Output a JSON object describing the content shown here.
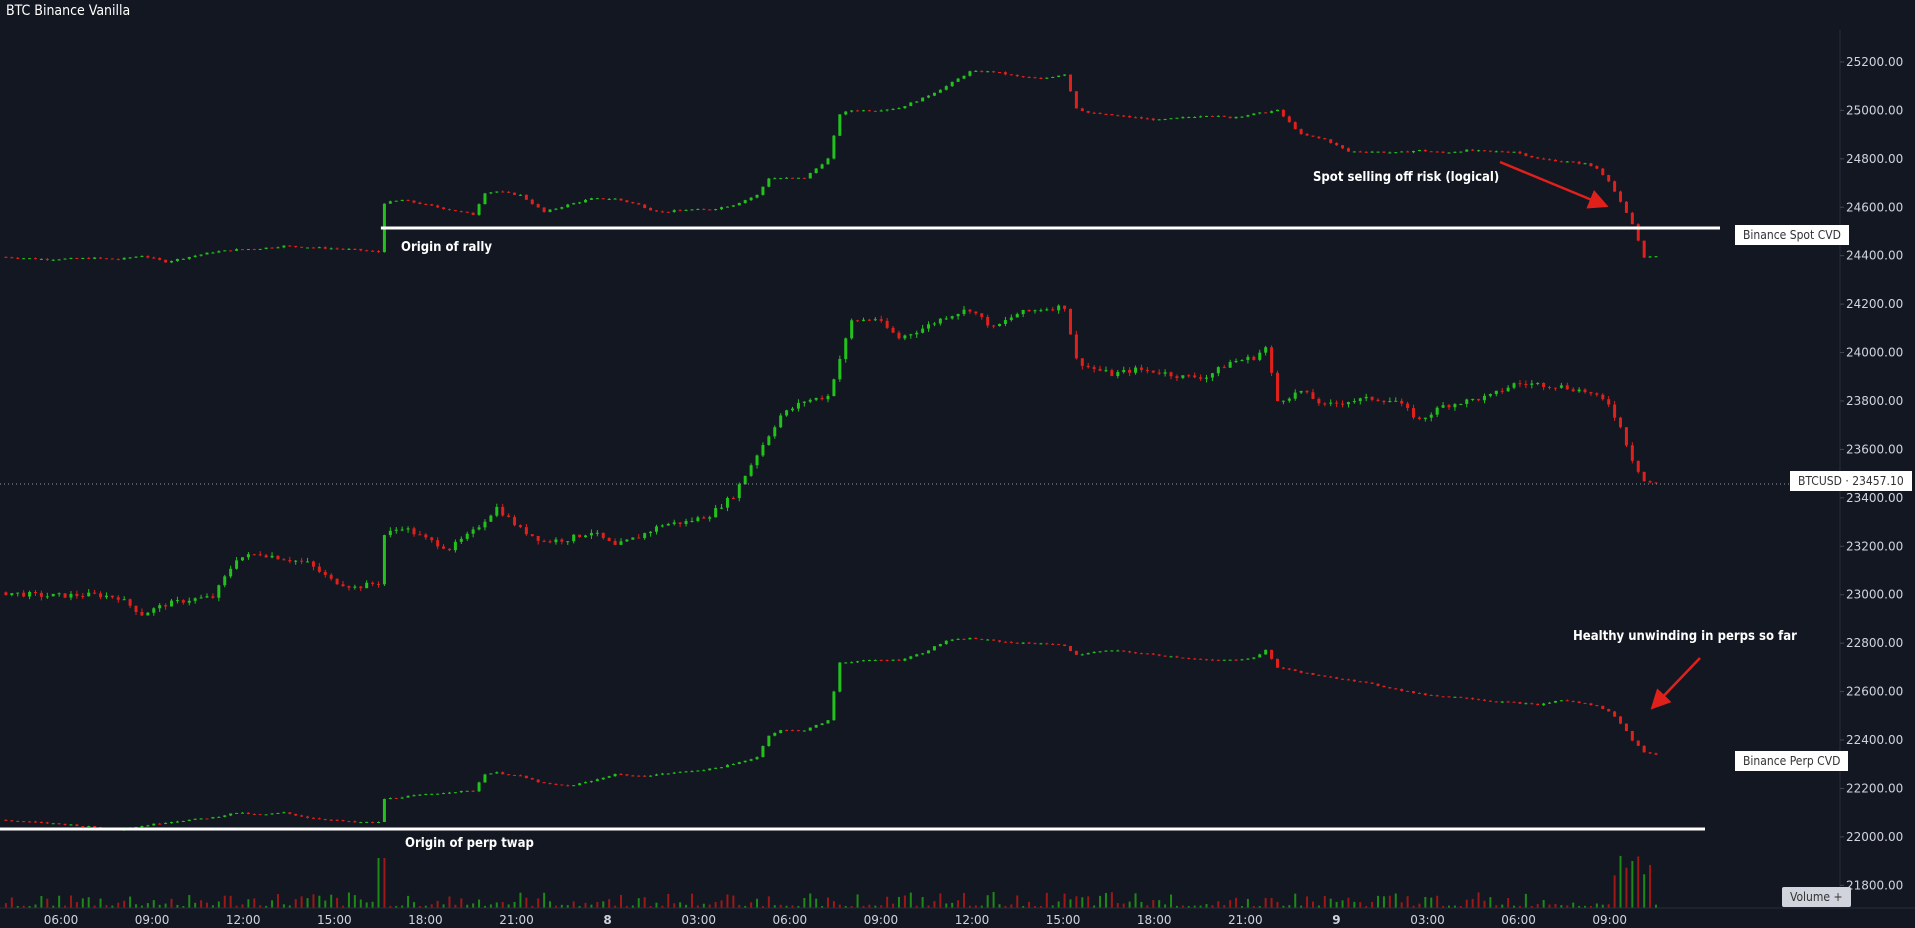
{
  "header": {
    "title": "BTC Binance Vanilla"
  },
  "tags": {
    "spot_cvd": "Binance Spot CVD",
    "perp_cvd": "Binance Perp CVD",
    "btcusd": "BTCUSD  ·  23457.10"
  },
  "volume_button": "Volume +",
  "annotations": {
    "origin_rally": "Origin of rally",
    "origin_perp": "Origin of perp twap",
    "spot_selling": "Spot selling off risk (logical)",
    "healthy_unwinding": "Healthy unwinding in perps so far"
  },
  "colors": {
    "up": "#22c11c",
    "down": "#e0201b",
    "background": "#131722",
    "line": "#ffffff",
    "arrow": "#e0201b"
  },
  "chart_data": {
    "type": "line",
    "title": "BTC Binance Vanilla",
    "price_axis_ticks": [
      25200,
      25000,
      24800,
      24600,
      24400,
      24200,
      24000,
      23800,
      23600,
      23400,
      23200,
      23000,
      22800,
      22600,
      22400,
      22200,
      22000,
      21800
    ],
    "price_axis_labels": [
      "25200.00",
      "25000.00",
      "24800.00",
      "24600.00",
      "24400.00",
      "24200.00",
      "24000.00",
      "23800.00",
      "23600.00",
      "23400.00",
      "23200.00",
      "23000.00",
      "22800.00",
      "22600.00",
      "22400.00",
      "22200.00",
      "22000.00",
      "21800.00"
    ],
    "ylim": [
      21760,
      25270
    ],
    "time_axis_labels": [
      "06:00",
      "09:00",
      "12:00",
      "15:00",
      "18:00",
      "21:00",
      "8",
      "03:00",
      "06:00",
      "09:00",
      "12:00",
      "15:00",
      "18:00",
      "21:00",
      "9",
      "03:00",
      "06:00",
      "09:00"
    ],
    "last_price": 23457.1,
    "series": [
      {
        "name": "Binance Spot CVD",
        "scale": "price_axis",
        "anchors": [
          [
            0,
            24395
          ],
          [
            2,
            24385
          ],
          [
            4,
            24390
          ],
          [
            5,
            24385
          ],
          [
            6,
            24400
          ],
          [
            7,
            24375
          ],
          [
            8,
            24395
          ],
          [
            9,
            24415
          ],
          [
            10,
            24425
          ],
          [
            11,
            24430
          ],
          [
            12,
            24440
          ],
          [
            13,
            24435
          ],
          [
            14,
            24430
          ],
          [
            15,
            24425
          ],
          [
            16,
            24415
          ],
          [
            16.05,
            24440
          ],
          [
            16.1,
            24615
          ],
          [
            17,
            24630
          ],
          [
            18,
            24610
          ],
          [
            19,
            24590
          ],
          [
            20,
            24570
          ],
          [
            20.5,
            24660
          ],
          [
            21,
            24665
          ],
          [
            22,
            24650
          ],
          [
            23,
            24580
          ],
          [
            24,
            24610
          ],
          [
            25,
            24635
          ],
          [
            26,
            24635
          ],
          [
            27,
            24610
          ],
          [
            27.5,
            24590
          ],
          [
            28,
            24580
          ],
          [
            29,
            24590
          ],
          [
            30,
            24590
          ],
          [
            31,
            24610
          ],
          [
            32,
            24650
          ],
          [
            32.5,
            24720
          ],
          [
            33,
            24720
          ],
          [
            34,
            24720
          ],
          [
            34.5,
            24760
          ],
          [
            35,
            24800
          ],
          [
            35.5,
            24985
          ],
          [
            36,
            25000
          ],
          [
            37,
            25000
          ],
          [
            38,
            25010
          ],
          [
            39,
            25050
          ],
          [
            40,
            25100
          ],
          [
            41,
            25160
          ],
          [
            42,
            25160
          ],
          [
            43,
            25140
          ],
          [
            44,
            25130
          ],
          [
            45,
            25150
          ],
          [
            45.5,
            25010
          ],
          [
            46,
            24990
          ],
          [
            47,
            24980
          ],
          [
            48,
            24970
          ],
          [
            49,
            24960
          ],
          [
            50,
            24970
          ],
          [
            51,
            24980
          ],
          [
            52,
            24970
          ],
          [
            53,
            24985
          ],
          [
            54,
            25000
          ],
          [
            55,
            24900
          ],
          [
            56,
            24880
          ],
          [
            57,
            24830
          ],
          [
            58,
            24830
          ],
          [
            59,
            24825
          ],
          [
            60,
            24835
          ],
          [
            61,
            24825
          ],
          [
            62,
            24835
          ],
          [
            63,
            24830
          ],
          [
            64,
            24830
          ],
          [
            65,
            24800
          ],
          [
            66,
            24790
          ],
          [
            67,
            24780
          ],
          [
            67.5,
            24760
          ],
          [
            68,
            24710
          ],
          [
            68.5,
            24620
          ],
          [
            69,
            24530
          ],
          [
            69.5,
            24395
          ],
          [
            70,
            24395
          ],
          [
            70.2,
            24410
          ]
        ]
      },
      {
        "name": "BTCUSD",
        "scale": "price_axis",
        "anchors": [
          [
            0,
            23010
          ],
          [
            2,
            22995
          ],
          [
            4,
            23000
          ],
          [
            5,
            22990
          ],
          [
            6,
            22920
          ],
          [
            7,
            22960
          ],
          [
            8,
            22980
          ],
          [
            9,
            22990
          ],
          [
            10,
            23150
          ],
          [
            11,
            23170
          ],
          [
            12,
            23150
          ],
          [
            13,
            23130
          ],
          [
            14,
            23060
          ],
          [
            15,
            23030
          ],
          [
            16,
            23050
          ],
          [
            16.1,
            23240
          ],
          [
            17,
            23280
          ],
          [
            18,
            23230
          ],
          [
            19,
            23190
          ],
          [
            20,
            23260
          ],
          [
            21,
            23360
          ],
          [
            22,
            23270
          ],
          [
            23,
            23220
          ],
          [
            24,
            23230
          ],
          [
            25,
            23260
          ],
          [
            26,
            23200
          ],
          [
            27,
            23240
          ],
          [
            28,
            23290
          ],
          [
            29,
            23300
          ],
          [
            30,
            23330
          ],
          [
            31,
            23410
          ],
          [
            32,
            23580
          ],
          [
            33,
            23740
          ],
          [
            34,
            23800
          ],
          [
            35,
            23820
          ],
          [
            36,
            24130
          ],
          [
            37,
            24140
          ],
          [
            38,
            24060
          ],
          [
            39,
            24100
          ],
          [
            40,
            24150
          ],
          [
            41,
            24180
          ],
          [
            42,
            24100
          ],
          [
            43,
            24160
          ],
          [
            44,
            24180
          ],
          [
            45,
            24190
          ],
          [
            45.5,
            23970
          ],
          [
            46,
            23940
          ],
          [
            47,
            23910
          ],
          [
            48,
            23930
          ],
          [
            49,
            23920
          ],
          [
            50,
            23900
          ],
          [
            51,
            23900
          ],
          [
            52,
            23960
          ],
          [
            53,
            23980
          ],
          [
            53.5,
            24020
          ],
          [
            54,
            23800
          ],
          [
            55,
            23840
          ],
          [
            56,
            23780
          ],
          [
            57,
            23800
          ],
          [
            58,
            23810
          ],
          [
            59,
            23800
          ],
          [
            60,
            23720
          ],
          [
            61,
            23780
          ],
          [
            62,
            23800
          ],
          [
            63,
            23820
          ],
          [
            64,
            23870
          ],
          [
            65,
            23870
          ],
          [
            66,
            23860
          ],
          [
            67,
            23840
          ],
          [
            68,
            23790
          ],
          [
            68.5,
            23690
          ],
          [
            69,
            23560
          ],
          [
            69.5,
            23470
          ],
          [
            70,
            23457.1
          ]
        ]
      },
      {
        "name": "Binance Perp CVD",
        "scale": "price_axis",
        "anchors": [
          [
            0,
            22070
          ],
          [
            3,
            22050
          ],
          [
            5,
            22030
          ],
          [
            7,
            22060
          ],
          [
            8,
            22070
          ],
          [
            9,
            22080
          ],
          [
            10,
            22100
          ],
          [
            11,
            22090
          ],
          [
            12,
            22100
          ],
          [
            13,
            22080
          ],
          [
            14,
            22070
          ],
          [
            15,
            22060
          ],
          [
            16,
            22060
          ],
          [
            16.1,
            22155
          ],
          [
            18,
            22175
          ],
          [
            19,
            22185
          ],
          [
            20,
            22190
          ],
          [
            20.5,
            22260
          ],
          [
            21,
            22265
          ],
          [
            22,
            22250
          ],
          [
            23,
            22220
          ],
          [
            24,
            22210
          ],
          [
            25,
            22230
          ],
          [
            26,
            22260
          ],
          [
            27,
            22250
          ],
          [
            28,
            22260
          ],
          [
            29,
            22270
          ],
          [
            30,
            22280
          ],
          [
            31,
            22300
          ],
          [
            32,
            22330
          ],
          [
            32.5,
            22420
          ],
          [
            33,
            22440
          ],
          [
            34,
            22440
          ],
          [
            35,
            22480
          ],
          [
            35.5,
            22720
          ],
          [
            37,
            22730
          ],
          [
            38,
            22730
          ],
          [
            39,
            22760
          ],
          [
            40,
            22810
          ],
          [
            41,
            22820
          ],
          [
            42,
            22810
          ],
          [
            43,
            22800
          ],
          [
            44,
            22800
          ],
          [
            45,
            22790
          ],
          [
            45.5,
            22750
          ],
          [
            46,
            22760
          ],
          [
            47,
            22770
          ],
          [
            48,
            22760
          ],
          [
            49,
            22750
          ],
          [
            50,
            22740
          ],
          [
            51,
            22730
          ],
          [
            52,
            22730
          ],
          [
            53,
            22740
          ],
          [
            53.5,
            22770
          ],
          [
            54,
            22700
          ],
          [
            55,
            22680
          ],
          [
            56,
            22660
          ],
          [
            57,
            22650
          ],
          [
            58,
            22630
          ],
          [
            59,
            22610
          ],
          [
            60,
            22590
          ],
          [
            61,
            22580
          ],
          [
            62,
            22575
          ],
          [
            63,
            22560
          ],
          [
            64,
            22555
          ],
          [
            65,
            22545
          ],
          [
            66,
            22565
          ],
          [
            67,
            22550
          ],
          [
            67.5,
            22540
          ],
          [
            68,
            22520
          ],
          [
            68.5,
            22470
          ],
          [
            69,
            22400
          ],
          [
            69.5,
            22350
          ],
          [
            70,
            22340
          ]
        ]
      }
    ]
  }
}
